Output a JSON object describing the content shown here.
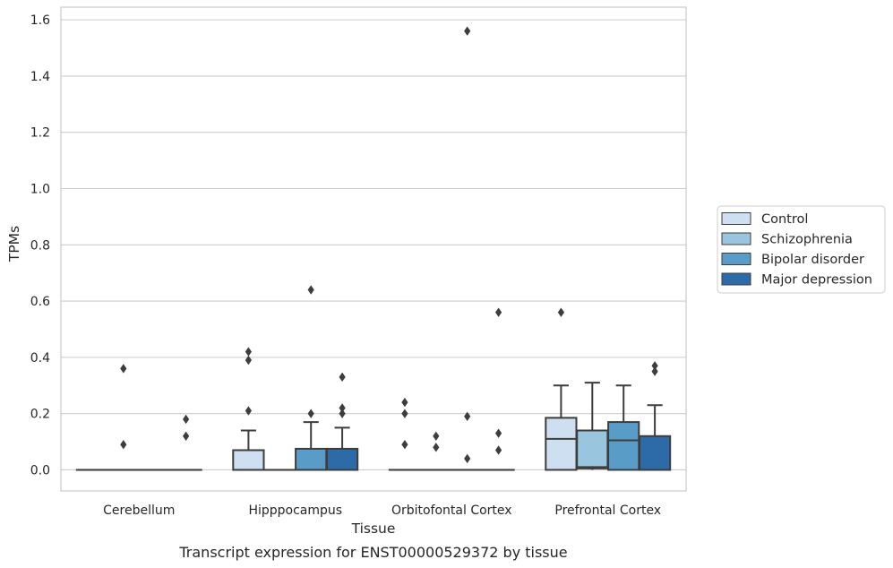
{
  "chart_data": {
    "type": "box",
    "caption": "Transcript expression for ENST00000529372 by tissue",
    "xlabel": "Tissue",
    "ylabel": "TPMs",
    "ylim": [
      -0.075,
      1.645
    ],
    "yticks": [
      0.0,
      0.2,
      0.4,
      0.6,
      0.8,
      1.0,
      1.2,
      1.4,
      1.6
    ],
    "ytick_labels": [
      "0.0",
      "0.2",
      "0.4",
      "0.6",
      "0.8",
      "1.0",
      "1.2",
      "1.4",
      "1.6"
    ],
    "categories": [
      "Cerebellum",
      "Hipppocampus",
      "Orbitofontal Cortex",
      "Prefrontal Cortex"
    ],
    "grid": "horizontal",
    "legend_position": "right, outside plot",
    "series": [
      {
        "name": "Control",
        "color": "#cddff0",
        "boxes": [
          {
            "min": 0,
            "q1": 0,
            "median": 0,
            "q3": 0,
            "max": 0,
            "outliers": []
          },
          {
            "min": 0,
            "q1": 0,
            "median": 0,
            "q3": 0.07,
            "max": 0.14,
            "outliers": [
              0.21,
              0.39,
              0.42
            ]
          },
          {
            "min": 0,
            "q1": 0,
            "median": 0,
            "q3": 0,
            "max": 0,
            "outliers": [
              0.09,
              0.2,
              0.24
            ]
          },
          {
            "min": 0,
            "q1": 0,
            "median": 0.11,
            "q3": 0.185,
            "max": 0.3,
            "outliers": [
              0.56
            ]
          }
        ]
      },
      {
        "name": "Schizophrenia",
        "color": "#9ac5df",
        "boxes": [
          {
            "min": 0,
            "q1": 0,
            "median": 0,
            "q3": 0,
            "max": 0,
            "outliers": [
              0.09,
              0.36
            ]
          },
          {
            "min": 0,
            "q1": 0,
            "median": 0,
            "q3": 0,
            "max": 0,
            "outliers": []
          },
          {
            "min": 0,
            "q1": 0,
            "median": 0,
            "q3": 0,
            "max": 0,
            "outliers": [
              0.08,
              0.12
            ]
          },
          {
            "min": 0,
            "q1": 0.005,
            "median": 0.01,
            "q3": 0.14,
            "max": 0.31,
            "outliers": []
          }
        ]
      },
      {
        "name": "Bipolar disorder",
        "color": "#5a9cc8",
        "boxes": [
          {
            "min": 0,
            "q1": 0,
            "median": 0,
            "q3": 0,
            "max": 0,
            "outliers": []
          },
          {
            "min": 0,
            "q1": 0,
            "median": 0,
            "q3": 0.075,
            "max": 0.17,
            "outliers": [
              0.2,
              0.64
            ]
          },
          {
            "min": 0,
            "q1": 0,
            "median": 0,
            "q3": 0,
            "max": 0,
            "outliers": [
              0.04,
              0.19,
              1.56
            ]
          },
          {
            "min": 0,
            "q1": 0,
            "median": 0.105,
            "q3": 0.17,
            "max": 0.3,
            "outliers": []
          }
        ]
      },
      {
        "name": "Major depression",
        "color": "#2c6aa8",
        "boxes": [
          {
            "min": 0,
            "q1": 0,
            "median": 0,
            "q3": 0,
            "max": 0,
            "outliers": [
              0.12,
              0.18
            ]
          },
          {
            "min": 0,
            "q1": 0,
            "median": 0,
            "q3": 0.075,
            "max": 0.15,
            "outliers": [
              0.2,
              0.22,
              0.33
            ]
          },
          {
            "min": 0,
            "q1": 0,
            "median": 0,
            "q3": 0,
            "max": 0,
            "outliers": [
              0.07,
              0.13,
              0.56
            ]
          },
          {
            "min": 0,
            "q1": 0,
            "median": 0,
            "q3": 0.12,
            "max": 0.23,
            "outliers": [
              0.35,
              0.37
            ]
          }
        ]
      }
    ]
  }
}
